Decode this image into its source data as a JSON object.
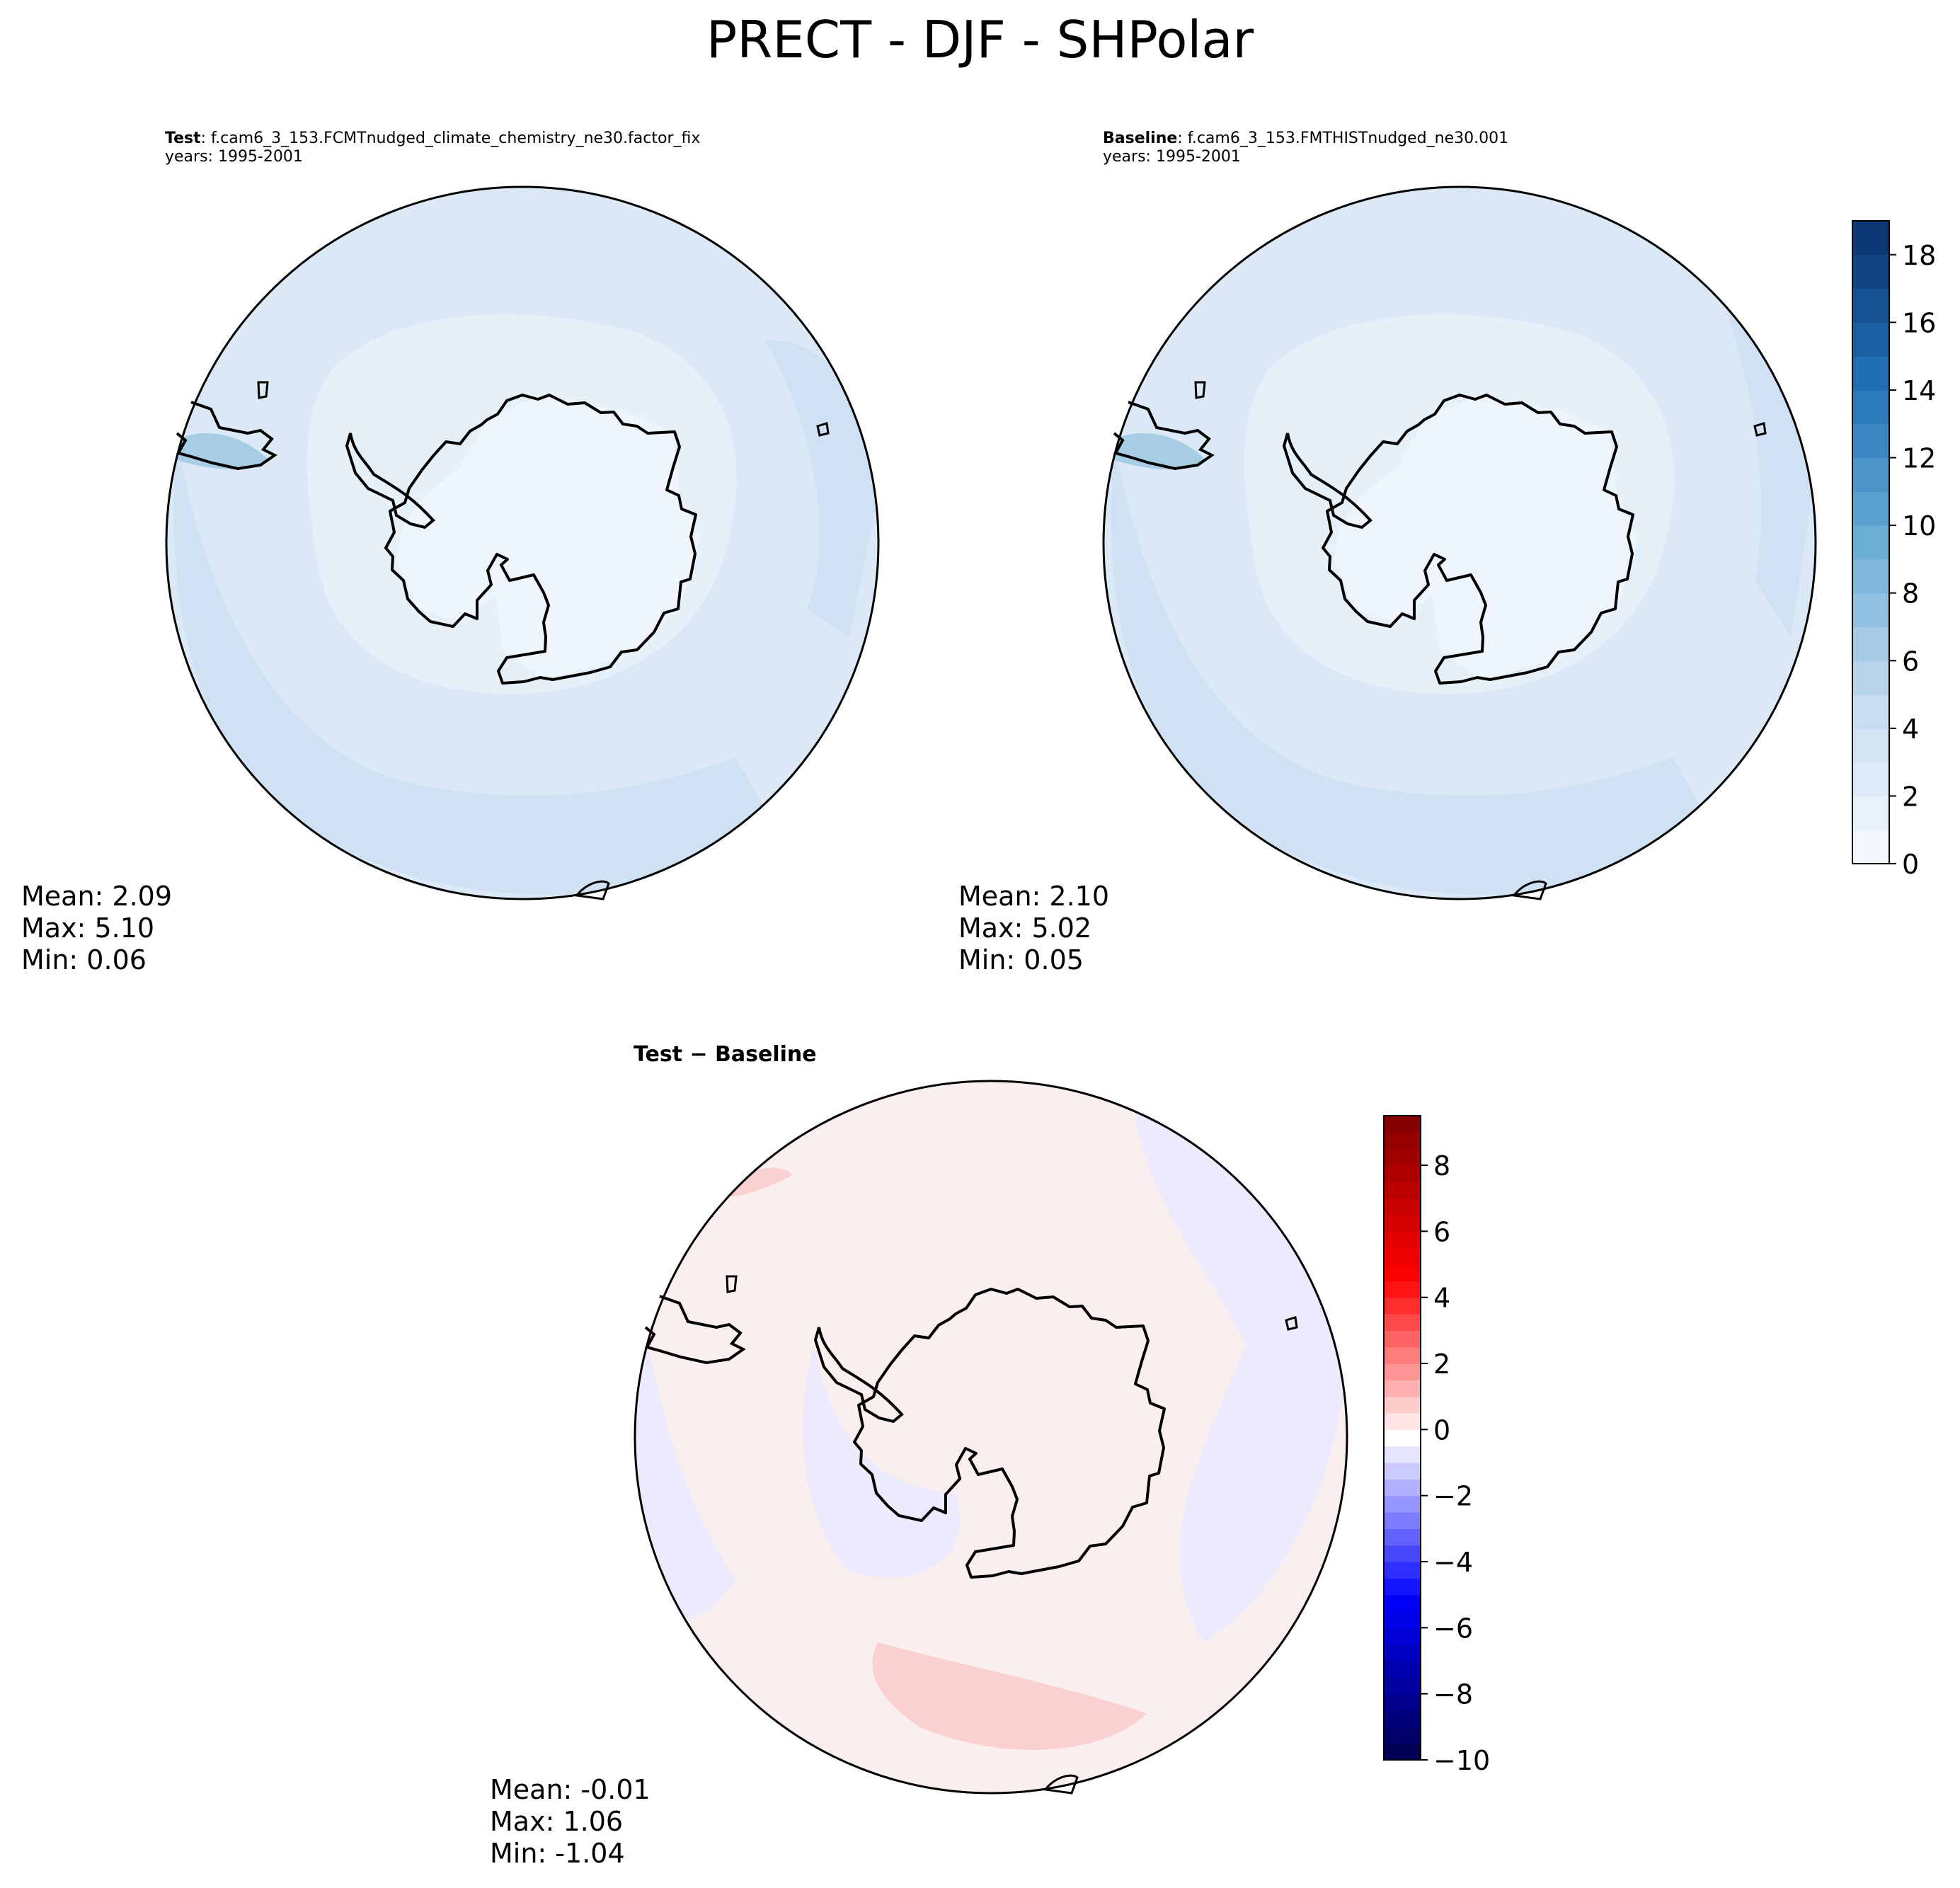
{
  "figure": {
    "title": "PRECT - DJF - SHPolar"
  },
  "panels": {
    "test": {
      "label": "Test",
      "case": ": f.cam6_3_153.FCMTnudged_climate_chemistry_ne30.factor_fix",
      "years": "years: 1995-2001",
      "mean": "Mean:  2.09",
      "max": "Max:  5.10",
      "min": "Min:  0.06"
    },
    "baseline": {
      "label": "Baseline",
      "case": ": f.cam6_3_153.FMTHISTnudged_ne30.001",
      "years": "years: 1995-2001",
      "mean": "Mean:  2.10",
      "max": "Max:  5.02",
      "min": "Min:  0.05"
    },
    "diff": {
      "title": "Test − Baseline",
      "mean": "Mean: -0.01",
      "max": "Max:  1.06",
      "min": "Min: -1.04"
    }
  },
  "chart_data": [
    {
      "type": "heatmap",
      "projection": "south-polar-stereographic",
      "colormap": "Blues",
      "colorbar": {
        "min": 0,
        "max": 19,
        "ticks": [
          0,
          2,
          4,
          6,
          8,
          10,
          12,
          14,
          16,
          18
        ],
        "levels": 19
      },
      "stats": {
        "mean": 2.09,
        "max": 5.1,
        "min": 0.06
      }
    },
    {
      "type": "heatmap",
      "projection": "south-polar-stereographic",
      "colormap": "Blues",
      "colorbar": {
        "min": 0,
        "max": 19,
        "ticks": [
          0,
          2,
          4,
          6,
          8,
          10,
          12,
          14,
          16,
          18
        ],
        "levels": 19
      },
      "stats": {
        "mean": 2.1,
        "max": 5.02,
        "min": 0.05
      }
    },
    {
      "type": "heatmap",
      "projection": "south-polar-stereographic",
      "colormap": "seismic",
      "colorbar": {
        "min": -10,
        "max": 9.5,
        "ticks": [
          -10,
          -8,
          -6,
          -4,
          -2,
          0,
          2,
          4,
          6,
          8
        ],
        "tick_labels": [
          "−10",
          "−8",
          "−6",
          "−4",
          "−2",
          "0",
          "2",
          "4",
          "6",
          "8"
        ]
      },
      "stats": {
        "mean": -0.01,
        "max": 1.06,
        "min": -1.04
      }
    }
  ],
  "colors": {
    "ocean_blue": "#dbe9f6",
    "ocean_blue_band": "#cfe1f2",
    "land_blue": "#eff5fc",
    "diff_pink": "#fde7e7",
    "diff_lavender": "#ebebfd",
    "diff_strong_pink": "#fbd0d0",
    "coast": "#000000"
  }
}
